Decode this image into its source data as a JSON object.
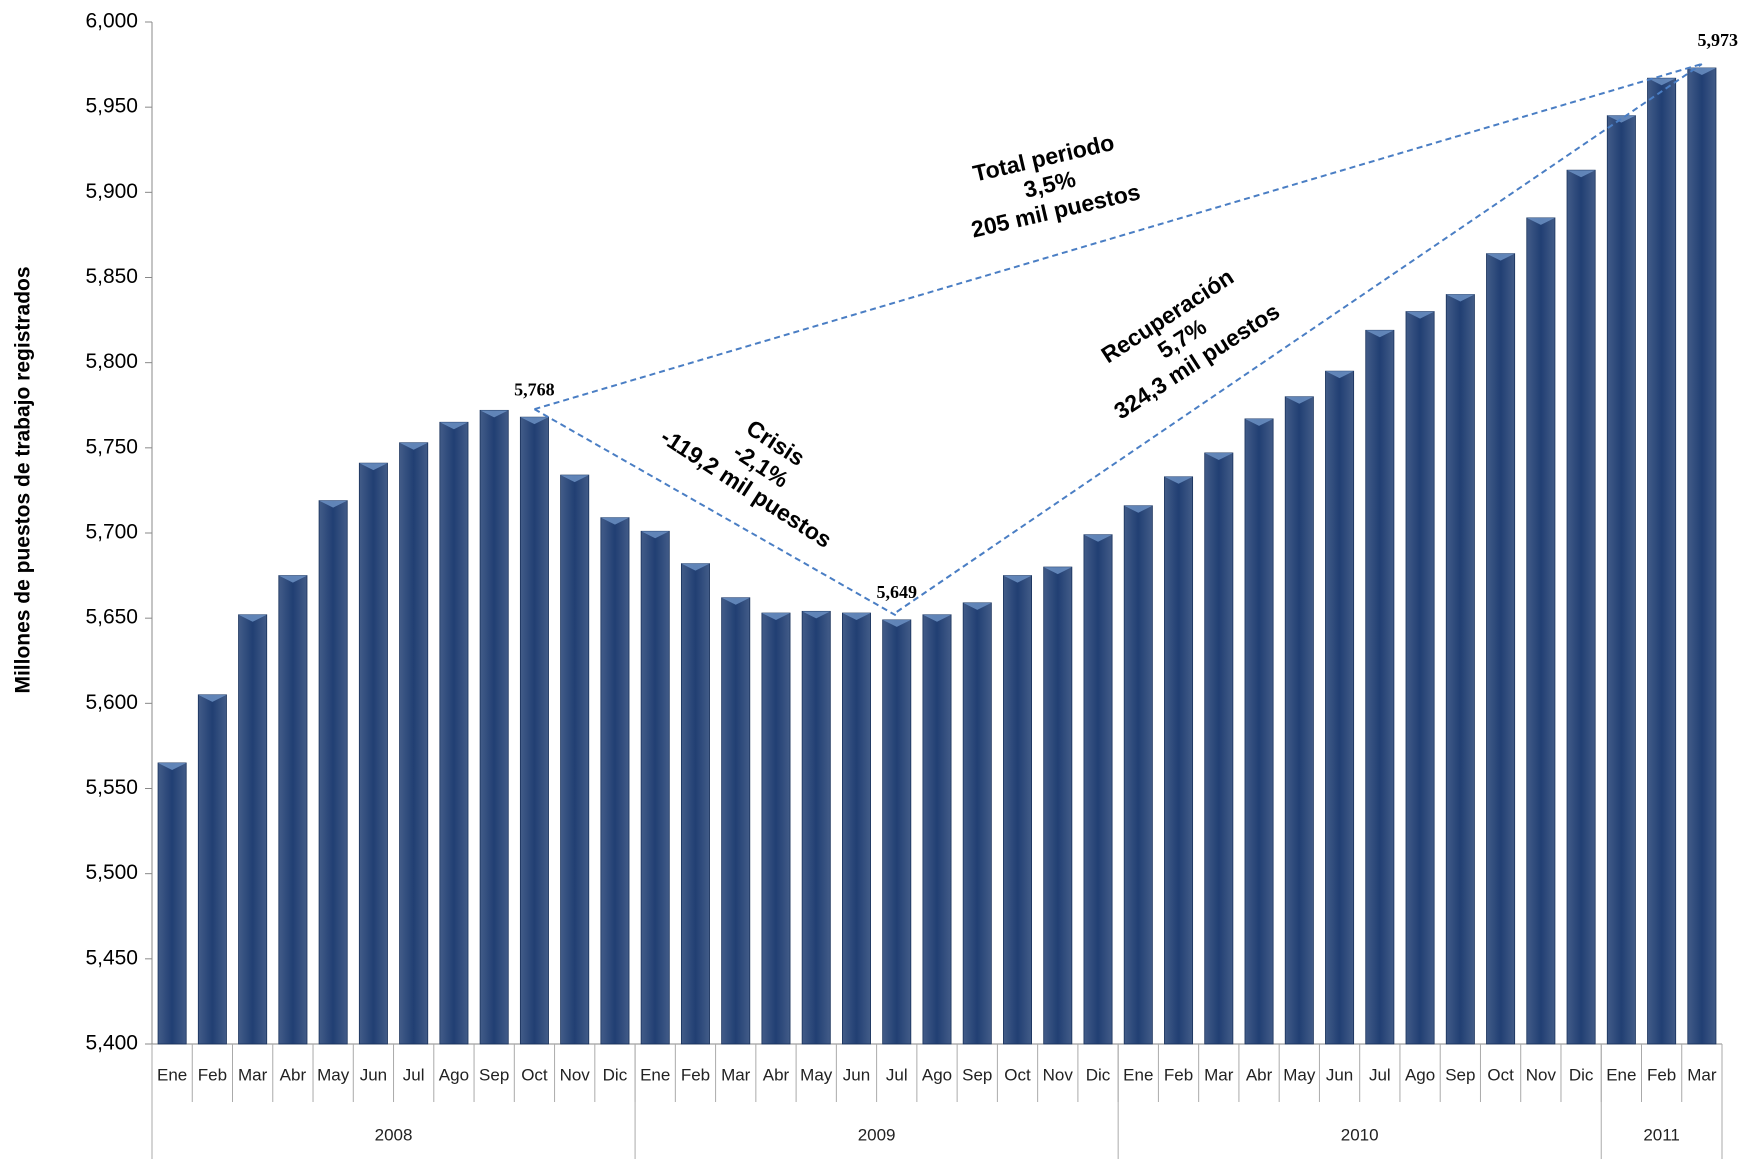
{
  "chart_data": {
    "type": "bar",
    "y_label": "Millones de puestos de trabajo registrados",
    "color": "#213f73",
    "ylim": [
      5400,
      6000
    ],
    "yticks": [
      {
        "value": 5400,
        "label": "5,400"
      },
      {
        "value": 5450,
        "label": "5,450"
      },
      {
        "value": 5500,
        "label": "5,500"
      },
      {
        "value": 5550,
        "label": "5,550"
      },
      {
        "value": 5600,
        "label": "5,600"
      },
      {
        "value": 5650,
        "label": "5,650"
      },
      {
        "value": 5700,
        "label": "5,700"
      },
      {
        "value": 5750,
        "label": "5,750"
      },
      {
        "value": 5800,
        "label": "5,800"
      },
      {
        "value": 5850,
        "label": "5,850"
      },
      {
        "value": 5900,
        "label": "5,900"
      },
      {
        "value": 5950,
        "label": "5,950"
      },
      {
        "value": 6000,
        "label": "6,000"
      }
    ],
    "groups": [
      {
        "label": "2008",
        "categories": [
          "Ene",
          "Feb",
          "Mar",
          "Abr",
          "May",
          "Jun",
          "Jul",
          "Ago",
          "Sep",
          "Oct",
          "Nov",
          "Dic"
        ],
        "values": [
          5565,
          5605,
          5652,
          5675,
          5719,
          5741,
          5753,
          5765,
          5772,
          5768,
          5734,
          5709
        ],
        "value_labels": [
          null,
          null,
          null,
          null,
          null,
          null,
          null,
          null,
          null,
          "5,768",
          null,
          null
        ]
      },
      {
        "label": "2009",
        "categories": [
          "Ene",
          "Feb",
          "Mar",
          "Abr",
          "May",
          "Jun",
          "Jul",
          "Ago",
          "Sep",
          "Oct",
          "Nov",
          "Dic"
        ],
        "values": [
          5701,
          5682,
          5662,
          5653,
          5654,
          5653,
          5649,
          5652,
          5659,
          5675,
          5680,
          5699
        ],
        "value_labels": [
          null,
          null,
          null,
          null,
          null,
          null,
          "5,649",
          null,
          null,
          null,
          null,
          null
        ]
      },
      {
        "label": "2010",
        "categories": [
          "Ene",
          "Feb",
          "Mar",
          "Abr",
          "May",
          "Jun",
          "Jul",
          "Ago",
          "Sep",
          "Oct",
          "Nov",
          "Dic"
        ],
        "values": [
          5716,
          5733,
          5747,
          5767,
          5780,
          5795,
          5819,
          5830,
          5840,
          5864,
          5885,
          5913
        ],
        "value_labels": [
          null,
          null,
          null,
          null,
          null,
          null,
          null,
          null,
          null,
          null,
          null,
          null
        ]
      },
      {
        "label": "2011",
        "categories": [
          "Ene",
          "Feb",
          "Mar"
        ],
        "values": [
          5945,
          5967,
          5973
        ],
        "value_labels": [
          null,
          null,
          "5,973"
        ]
      }
    ],
    "annotations": [
      {
        "lines": [
          "Total periodo",
          "3,5%",
          "205 mil puestos"
        ]
      },
      {
        "lines": [
          "Crisis",
          "-2,1%",
          "-119,2 mil puestos"
        ]
      },
      {
        "lines": [
          "Recuperación",
          "5,7%",
          "324,3 mil puestos"
        ]
      }
    ]
  }
}
